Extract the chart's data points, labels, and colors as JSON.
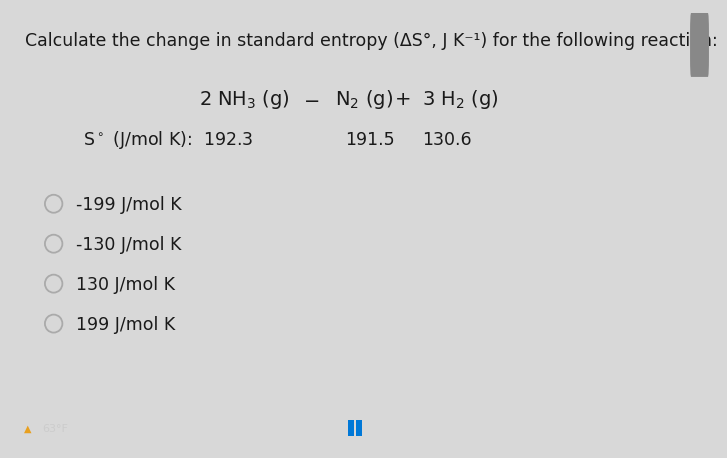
{
  "title": "Calculate the change in standard entropy (ΔS°, J K⁻¹) for the following reaction:",
  "entropy_nh3": "192.3",
  "entropy_n2": "191.5",
  "entropy_h2": "130.6",
  "choices": [
    "-199 J/mol K",
    "-130 J/mol K",
    "130 J/mol K",
    "199 J/mol K"
  ],
  "outer_bg": "#d8d8d8",
  "content_bg": "#f5f5f5",
  "taskbar_bg": "#1a1a1a",
  "text_color": "#1a1a1a",
  "circle_color": "#aaaaaa",
  "font_size_title": 12.5,
  "font_size_reaction": 14,
  "font_size_entropy": 12.5,
  "font_size_choices": 12.5,
  "footer_text": "63°F",
  "footer_color": "#cccccc",
  "right_bar_color": "#c0392b",
  "scroll_bg": "#b0b0b0"
}
